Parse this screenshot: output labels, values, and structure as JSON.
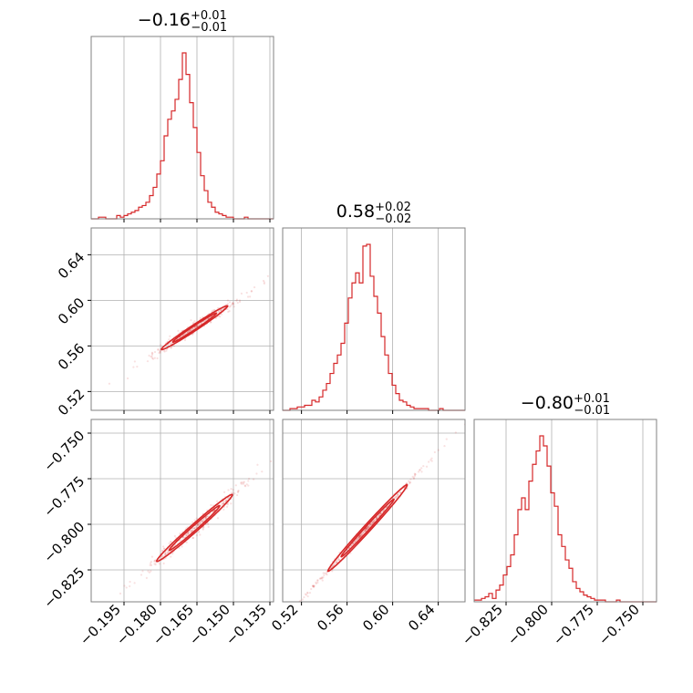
{
  "chart_data": {
    "type": "corner",
    "line_color": "#d62728",
    "grid_color": "#b0b0b0",
    "frame_color": "#808080",
    "parameters": [
      {
        "median": "−0.16",
        "plus": "+0.01",
        "minus": "−0.01",
        "range": [
          -0.2085,
          -0.1335
        ],
        "ticks": [
          -0.195,
          -0.18,
          -0.165,
          -0.15,
          -0.135
        ],
        "tick_labels": [
          "−0.195",
          "−0.180",
          "−0.165",
          "−0.150",
          "−0.135"
        ],
        "hist_bin_start": -0.2085,
        "hist_bin_width": 0.0015,
        "hist_counts": [
          0,
          0,
          1,
          1,
          0,
          0,
          0,
          2,
          1,
          2,
          3,
          4,
          5,
          7,
          8,
          10,
          14,
          19,
          27,
          35,
          50,
          60,
          65,
          72,
          84,
          100,
          87,
          70,
          55,
          40,
          26,
          17,
          10,
          7,
          4,
          3,
          2,
          1,
          1,
          0,
          0,
          0,
          1,
          0,
          0,
          0,
          0,
          0,
          0,
          0
        ]
      },
      {
        "median": "0.58",
        "plus": "+0.02",
        "minus": "−0.02",
        "range": [
          0.5035,
          0.6635
        ],
        "ticks": [
          0.52,
          0.56,
          0.6,
          0.64
        ],
        "tick_labels": [
          "0.52",
          "0.56",
          "0.60",
          "0.64"
        ],
        "hist_bin_start": 0.5035,
        "hist_bin_width": 0.0032,
        "hist_counts": [
          0,
          0,
          1,
          1,
          2,
          2,
          3,
          3,
          6,
          5,
          8,
          12,
          16,
          22,
          28,
          33,
          40,
          52,
          67,
          76,
          82,
          76,
          98,
          99,
          80,
          68,
          58,
          44,
          33,
          22,
          15,
          10,
          6,
          5,
          3,
          2,
          1,
          1,
          1,
          1,
          0,
          0,
          0,
          1,
          0,
          0,
          0,
          0,
          0,
          0
        ]
      },
      {
        "median": "−0.80",
        "plus": "+0.01",
        "minus": "−0.01",
        "range": [
          -0.8425,
          -0.7425
        ],
        "ticks": [
          -0.825,
          -0.8,
          -0.775,
          -0.75
        ],
        "tick_labels": [
          "−0.825",
          "−0.800",
          "−0.775",
          "−0.750"
        ],
        "hist_bin_start": -0.8425,
        "hist_bin_width": 0.002,
        "hist_counts": [
          1,
          1,
          2,
          3,
          5,
          2,
          7,
          10,
          16,
          21,
          28,
          40,
          55,
          62,
          55,
          72,
          82,
          90,
          99,
          93,
          81,
          65,
          57,
          40,
          33,
          25,
          20,
          12,
          8,
          6,
          4,
          3,
          2,
          1,
          1,
          1,
          0,
          0,
          0,
          1,
          0,
          0,
          0,
          0,
          0,
          0,
          0,
          0,
          0,
          0
        ]
      }
    ],
    "pairs": [
      {
        "x_param": 0,
        "y_param": 1,
        "contours": [
          {
            "center": [
              -0.166,
              0.576
            ],
            "slope": 1.42,
            "half_length": 0.0155,
            "half_width": 0.0011,
            "angles": [
              0,
              90,
              180,
              270
            ]
          },
          {
            "center": [
              -0.166,
              0.576
            ],
            "slope": 1.42,
            "half_length": 0.0235,
            "half_width": 0.0018,
            "angles": [
              0,
              90,
              180,
              270
            ]
          }
        ],
        "point_cloud": {
          "center": [
            -0.166,
            0.576
          ],
          "slope": 1.42,
          "spread_along": 0.015,
          "spread_across": 0.0013
        }
      },
      {
        "x_param": 0,
        "y_param": 2,
        "contours": [
          {
            "center": [
              -0.166,
              -0.802
            ],
            "slope": 1.18,
            "half_length": 0.016,
            "half_width": 0.0011,
            "angles": [
              0,
              90,
              180,
              270
            ]
          },
          {
            "center": [
              -0.166,
              -0.802
            ],
            "slope": 1.18,
            "half_length": 0.024,
            "half_width": 0.0018,
            "angles": [
              0,
              90,
              180,
              270
            ]
          }
        ],
        "point_cloud": {
          "center": [
            -0.166,
            -0.802
          ],
          "slope": 1.18,
          "spread_along": 0.015,
          "spread_across": 0.0014
        }
      },
      {
        "x_param": 1,
        "y_param": 2,
        "contours": [
          {
            "center": [
              0.578,
              -0.802
            ],
            "slope": 0.68,
            "half_length": 0.028,
            "half_width": 0.0014,
            "angles": [
              0,
              90,
              180,
              270
            ]
          },
          {
            "center": [
              0.578,
              -0.802
            ],
            "slope": 0.68,
            "half_length": 0.042,
            "half_width": 0.0024,
            "angles": [
              0,
              90,
              180,
              270
            ]
          }
        ],
        "point_cloud": {
          "center": [
            0.578,
            -0.802
          ],
          "slope": 0.68,
          "spread_along": 0.027,
          "spread_across": 0.0008
        }
      }
    ]
  }
}
